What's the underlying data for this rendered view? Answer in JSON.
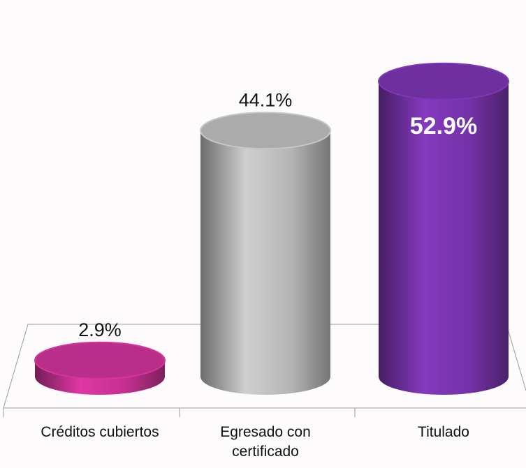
{
  "chart_data": {
    "type": "cylinder",
    "categories": [
      "Créditos cubiertos",
      "Egresado con certificado",
      "Titulado"
    ],
    "values": [
      2.9,
      44.1,
      52.9
    ],
    "value_labels": [
      "2.9%",
      "44.1%",
      "52.9%"
    ],
    "label_position": [
      "outside",
      "outside",
      "inside"
    ],
    "colors": [
      "#c2308f",
      "#b4b4b4",
      "#7432a6"
    ]
  }
}
